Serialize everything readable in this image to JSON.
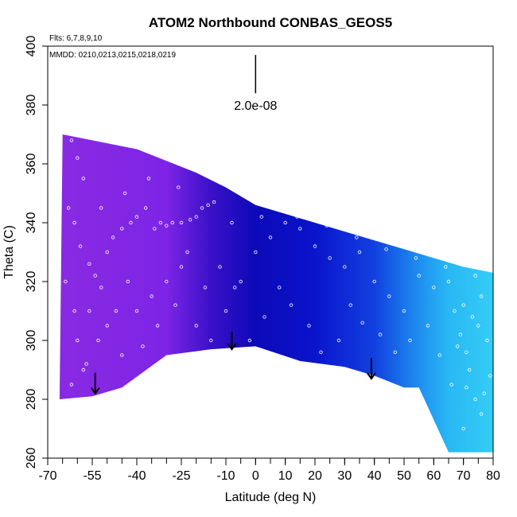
{
  "chart_data": {
    "type": "heatmap",
    "title": "ATOM2 Northbound CONBAS_GEOS5",
    "flights_label": "Flts: 6,7,8,9,10",
    "dates_label": "MMDD: 0210,0213,0215,0218,0219",
    "xlabel": "Latitude (deg N)",
    "ylabel": "Theta (C)",
    "xlim": [
      -70,
      80
    ],
    "ylim": [
      260,
      400
    ],
    "x_tick_values": [
      -70,
      -55,
      -40,
      -25,
      -10,
      0,
      10,
      20,
      30,
      40,
      50,
      60,
      70,
      80
    ],
    "x_tick_labels": [
      "-70",
      "-55",
      "-40",
      "-25",
      "-10",
      "0",
      "10",
      "20",
      "30",
      "40",
      "50",
      "60",
      "70",
      "80"
    ],
    "y_tick_values": [
      260,
      280,
      300,
      320,
      340,
      360,
      380,
      400
    ],
    "y_tick_labels": [
      "260",
      "280",
      "300",
      "320",
      "340",
      "360",
      "380",
      "400"
    ],
    "scale_bar": {
      "label": "2.0e-08",
      "x": 0,
      "y_range": [
        384,
        397
      ]
    },
    "top_boundary": [
      [
        -65,
        370
      ],
      [
        -50,
        367
      ],
      [
        -40,
        365
      ],
      [
        -30,
        361
      ],
      [
        -20,
        357
      ],
      [
        -10,
        352
      ],
      [
        0,
        346
      ],
      [
        10,
        343
      ],
      [
        20,
        340
      ],
      [
        30,
        337
      ],
      [
        40,
        334
      ],
      [
        50,
        331
      ],
      [
        60,
        328
      ],
      [
        70,
        325
      ],
      [
        80,
        323
      ]
    ],
    "bottom_boundary": [
      [
        -66,
        280
      ],
      [
        -55,
        281
      ],
      [
        -45,
        284
      ],
      [
        -30,
        295
      ],
      [
        -15,
        297
      ],
      [
        0,
        298
      ],
      [
        15,
        293
      ],
      [
        30,
        291
      ],
      [
        40,
        288
      ],
      [
        50,
        284
      ],
      [
        55,
        284
      ],
      [
        65,
        262
      ],
      [
        80,
        262
      ]
    ],
    "colormap": [
      {
        "x": -70,
        "color": "#8a2be2"
      },
      {
        "x": -30,
        "color": "#7d24e6"
      },
      {
        "x": -15,
        "color": "#3a10c8"
      },
      {
        "x": 0,
        "color": "#0c0ab8"
      },
      {
        "x": 20,
        "color": "#0a14cc"
      },
      {
        "x": 40,
        "color": "#1240e0"
      },
      {
        "x": 55,
        "color": "#1e8ef0"
      },
      {
        "x": 65,
        "color": "#28b8f4"
      },
      {
        "x": 80,
        "color": "#34cdf6"
      }
    ],
    "arrows": [
      {
        "lat": -54,
        "theta_from": 289,
        "theta_to": 282
      },
      {
        "lat": -8,
        "theta_from": 303,
        "theta_to": 297
      },
      {
        "lat": 39,
        "theta_from": 294,
        "theta_to": 287
      }
    ],
    "sample_points": [
      [
        -62,
        368
      ],
      [
        -60,
        362
      ],
      [
        -58,
        355
      ],
      [
        -63,
        345
      ],
      [
        -61,
        340
      ],
      [
        -59,
        332
      ],
      [
        -56,
        326
      ],
      [
        -54,
        322
      ],
      [
        -52,
        318
      ],
      [
        -50,
        330
      ],
      [
        -48,
        335
      ],
      [
        -45,
        338
      ],
      [
        -42,
        340
      ],
      [
        -40,
        342
      ],
      [
        -37,
        345
      ],
      [
        -34,
        338
      ],
      [
        -32,
        340
      ],
      [
        -30,
        339
      ],
      [
        -28,
        340
      ],
      [
        -25,
        340
      ],
      [
        -22,
        341
      ],
      [
        -20,
        342
      ],
      [
        -18,
        345
      ],
      [
        -16,
        346
      ],
      [
        -14,
        347
      ],
      [
        -60,
        300
      ],
      [
        -58,
        290
      ],
      [
        -62,
        285
      ],
      [
        -56,
        310
      ],
      [
        -50,
        305
      ],
      [
        -45,
        295
      ],
      [
        -40,
        310
      ],
      [
        -35,
        315
      ],
      [
        -30,
        320
      ],
      [
        -25,
        325
      ],
      [
        -20,
        305
      ],
      [
        -15,
        300
      ],
      [
        -10,
        310
      ],
      [
        -5,
        320
      ],
      [
        0,
        330
      ],
      [
        5,
        335
      ],
      [
        10,
        340
      ],
      [
        15,
        338
      ],
      [
        20,
        332
      ],
      [
        25,
        328
      ],
      [
        30,
        325
      ],
      [
        35,
        330
      ],
      [
        40,
        320
      ],
      [
        45,
        315
      ],
      [
        50,
        310
      ],
      [
        55,
        322
      ],
      [
        60,
        318
      ],
      [
        65,
        320
      ],
      [
        70,
        312
      ],
      [
        75,
        305
      ],
      [
        78,
        300
      ],
      [
        68,
        298
      ],
      [
        72,
        290
      ],
      [
        74,
        280
      ],
      [
        76,
        275
      ],
      [
        70,
        270
      ],
      [
        66,
        285
      ],
      [
        62,
        295
      ],
      [
        58,
        305
      ],
      [
        52,
        300
      ],
      [
        47,
        296
      ],
      [
        42,
        302
      ],
      [
        36,
        306
      ],
      [
        32,
        312
      ],
      [
        28,
        300
      ],
      [
        22,
        296
      ],
      [
        18,
        305
      ],
      [
        12,
        312
      ],
      [
        8,
        318
      ],
      [
        3,
        308
      ],
      [
        -2,
        300
      ],
      [
        -7,
        318
      ],
      [
        -12,
        325
      ],
      [
        -17,
        318
      ],
      [
        -23,
        330
      ],
      [
        -27,
        312
      ],
      [
        -33,
        305
      ],
      [
        -38,
        298
      ],
      [
        -43,
        320
      ],
      [
        -47,
        310
      ],
      [
        -53,
        300
      ],
      [
        -57,
        292
      ],
      [
        -61,
        310
      ],
      [
        -64,
        320
      ],
      [
        -52,
        345
      ],
      [
        -44,
        350
      ],
      [
        -36,
        355
      ],
      [
        -26,
        352
      ],
      [
        -8,
        340
      ],
      [
        2,
        342
      ],
      [
        14,
        342
      ],
      [
        24,
        339
      ],
      [
        34,
        335
      ],
      [
        44,
        331
      ],
      [
        54,
        328
      ],
      [
        64,
        325
      ],
      [
        74,
        322
      ],
      [
        76,
        315
      ],
      [
        73,
        308
      ],
      [
        71,
        296
      ],
      [
        69,
        302
      ],
      [
        67,
        310
      ],
      [
        79,
        288
      ],
      [
        77,
        282
      ],
      [
        71,
        284
      ]
    ]
  }
}
